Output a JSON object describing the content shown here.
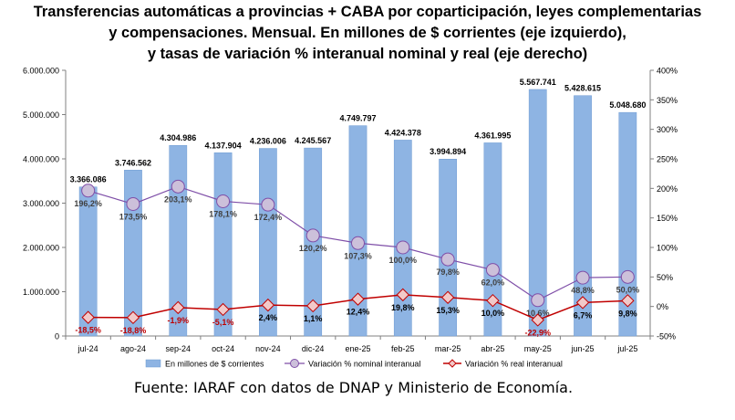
{
  "title_lines": [
    "Transferencias automáticas a provincias + CABA por coparticipación, leyes complementarias",
    "y compensaciones. Mensual. En millones de $ corrientes (eje izquierdo),",
    "y tasas de variación % interanual nominal y real (eje derecho)"
  ],
  "source": "Fuente: IARAF con datos de DNAP y Ministerio de Economía.",
  "colors": {
    "bar_fill": "#8EB4E3",
    "bar_stroke": "#6F9BD2",
    "nominal_line": "#7F4FA8",
    "nominal_marker": "#CCC0DA",
    "real_line": "#C00000",
    "real_marker": "#F2C9C9",
    "real_label": "#C00000",
    "nominal_label": "#404040",
    "axis": "#808080"
  },
  "chart_data": {
    "type": "bar",
    "categories": [
      "jul-24",
      "ago-24",
      "sep-24",
      "oct-24",
      "nov-24",
      "dic-24",
      "ene-25",
      "feb-25",
      "mar-25",
      "abr-25",
      "may-25",
      "jun-25",
      "jul-25"
    ],
    "series": [
      {
        "name": "En millones de $ corrientes",
        "type": "bar",
        "axis": "left",
        "values": [
          3366086,
          3746562,
          4304986,
          4137904,
          4236006,
          4245567,
          4749797,
          4424378,
          3994894,
          4361995,
          5567741,
          5428615,
          5048680
        ],
        "labels": [
          "3.366.086",
          "3.746.562",
          "4.304.986",
          "4.137.904",
          "4.236.006",
          "4.245.567",
          "4.749.797",
          "4.424.378",
          "3.994.894",
          "4.361.995",
          "5.567.741",
          "5.428.615",
          "5.048.680"
        ]
      },
      {
        "name": "Variación % nominal interanual",
        "type": "line",
        "axis": "right",
        "values": [
          196.2,
          173.5,
          203.1,
          178.1,
          172.4,
          120.2,
          107.3,
          100.0,
          79.8,
          62.0,
          10.6,
          48.8,
          50.0
        ],
        "labels": [
          "196,2%",
          "173,5%",
          "203,1%",
          "178,1%",
          "172,4%",
          "120,2%",
          "107,3%",
          "100,0%",
          "79,8%",
          "62,0%",
          "10,6%",
          "48,8%",
          "50,0%"
        ]
      },
      {
        "name": "Variación % real interanual",
        "type": "line",
        "axis": "right",
        "values": [
          -18.5,
          -18.8,
          -1.9,
          -5.1,
          2.4,
          1.1,
          12.4,
          19.8,
          15.3,
          10.0,
          -22.9,
          6.7,
          9.8
        ],
        "labels": [
          "-18,5%",
          "-18,8%",
          "-1,9%",
          "-5,1%",
          "2,4%",
          "1,1%",
          "12,4%",
          "19,8%",
          "15,3%",
          "10,0%",
          "-22,9%",
          "6,7%",
          "9,8%"
        ]
      }
    ],
    "left_axis": {
      "min": 0,
      "max": 6000000,
      "ticks": [
        0,
        1000000,
        2000000,
        3000000,
        4000000,
        5000000,
        6000000
      ],
      "tick_labels": [
        "0",
        "1.000.000",
        "2.000.000",
        "3.000.000",
        "4.000.000",
        "5.000.000",
        "6.000.000"
      ]
    },
    "right_axis": {
      "min": -50,
      "max": 400,
      "ticks": [
        -50,
        0,
        50,
        100,
        150,
        200,
        250,
        300,
        350,
        400
      ],
      "tick_labels": [
        "-50%",
        "0%",
        "50%",
        "100%",
        "150%",
        "200%",
        "250%",
        "300%",
        "350%",
        "400%"
      ]
    },
    "grid": false,
    "legend_position": "bottom"
  }
}
